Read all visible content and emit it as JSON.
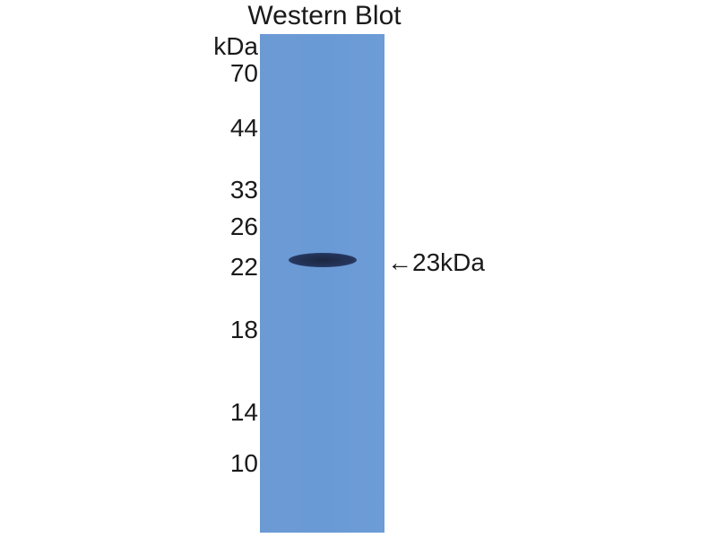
{
  "title": "Western Blot",
  "unit_label": "kDa",
  "markers": [
    "70",
    "44",
    "33",
    "26",
    "22",
    "18",
    "14",
    "10"
  ],
  "band_label": "←23kDa",
  "colors": {
    "membrane": "#6a9ad6",
    "band": "#1f2d48"
  }
}
